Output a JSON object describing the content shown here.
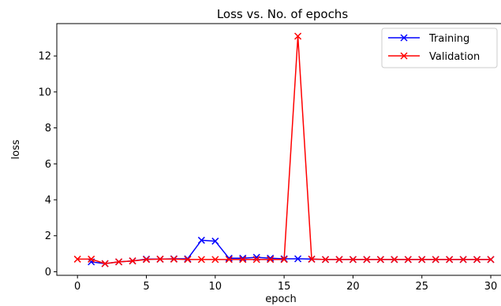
{
  "chart_data": {
    "type": "line",
    "title": "Loss vs. No. of epochs",
    "xlabel": "epoch",
    "ylabel": "loss",
    "xlim": [
      -1.5,
      30.8
    ],
    "ylim": [
      -0.2,
      13.8
    ],
    "xticks": [
      0,
      5,
      10,
      15,
      20,
      25,
      30
    ],
    "yticks": [
      0,
      2,
      4,
      6,
      8,
      10,
      12
    ],
    "grid": false,
    "legend_position": "top-right",
    "series": [
      {
        "name": "Training",
        "color": "#0000ff",
        "marker": "x",
        "x": [
          1,
          2,
          3,
          4,
          5,
          6,
          7,
          8,
          9,
          10,
          11,
          12,
          13,
          14,
          15,
          16,
          17,
          18,
          19,
          20,
          21,
          22,
          23,
          24,
          25,
          26,
          27,
          28,
          29,
          30
        ],
        "values": [
          0.55,
          0.45,
          0.55,
          0.6,
          0.7,
          0.7,
          0.72,
          0.72,
          1.75,
          1.7,
          0.75,
          0.75,
          0.8,
          0.75,
          0.72,
          0.72,
          0.7,
          0.68,
          0.68,
          0.68,
          0.68,
          0.68,
          0.68,
          0.68,
          0.68,
          0.68,
          0.68,
          0.68,
          0.68,
          0.68
        ]
      },
      {
        "name": "Validation",
        "color": "#ff0000",
        "marker": "x",
        "x": [
          0,
          1,
          2,
          3,
          4,
          5,
          6,
          7,
          8,
          9,
          10,
          11,
          12,
          13,
          14,
          15,
          16,
          17,
          18,
          19,
          20,
          21,
          22,
          23,
          24,
          25,
          26,
          27,
          28,
          29,
          30
        ],
        "values": [
          0.7,
          0.7,
          0.45,
          0.55,
          0.6,
          0.68,
          0.7,
          0.7,
          0.68,
          0.68,
          0.68,
          0.68,
          0.68,
          0.68,
          0.68,
          0.68,
          13.1,
          0.7,
          0.68,
          0.68,
          0.68,
          0.68,
          0.68,
          0.68,
          0.68,
          0.68,
          0.68,
          0.68,
          0.68,
          0.68,
          0.68
        ]
      }
    ]
  }
}
